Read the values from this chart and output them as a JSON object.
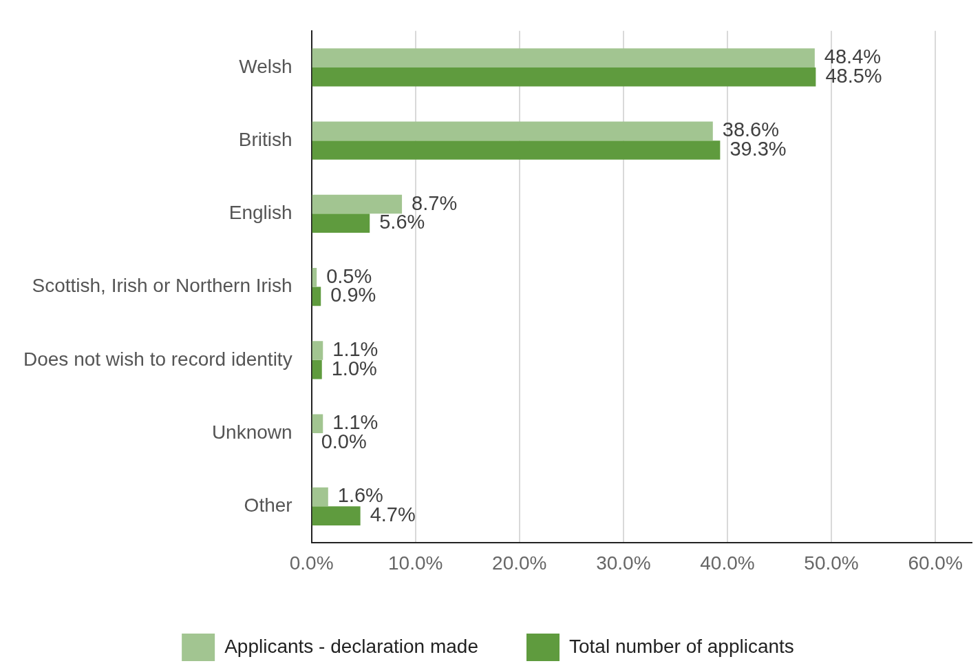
{
  "chart_data": {
    "type": "bar",
    "orientation": "horizontal",
    "categories": [
      "Welsh",
      "British",
      "English",
      "Scottish, Irish or Northern Irish",
      "Does not wish to record identity",
      "Unknown",
      "Other"
    ],
    "series": [
      {
        "name": "Applicants - declaration made",
        "color": "#a2c591",
        "values": [
          48.4,
          38.6,
          8.7,
          0.5,
          1.1,
          1.1,
          1.6
        ],
        "value_labels": [
          "48.4%",
          "38.6%",
          "8.7%",
          "0.5%",
          "1.1%",
          "1.1%",
          "1.6%"
        ]
      },
      {
        "name": "Total number of applicants",
        "color": "#5f9b3e",
        "values": [
          48.5,
          39.3,
          5.6,
          0.9,
          1.0,
          0.0,
          4.7
        ],
        "value_labels": [
          "48.5%",
          "39.3%",
          "5.6%",
          "0.9%",
          "1.0%",
          "0.0%",
          "4.7%"
        ]
      }
    ],
    "xlim": [
      0,
      63.5
    ],
    "xticks": [
      {
        "value": 0,
        "label": "0.0%"
      },
      {
        "value": 10,
        "label": "10.0%"
      },
      {
        "value": 20,
        "label": "20.0%"
      },
      {
        "value": 30,
        "label": "30.0%"
      },
      {
        "value": 40,
        "label": "40.0%"
      },
      {
        "value": 50,
        "label": "50.0%"
      },
      {
        "value": 60,
        "label": "60.0%"
      }
    ],
    "grid": "x",
    "legend": "bottom"
  }
}
